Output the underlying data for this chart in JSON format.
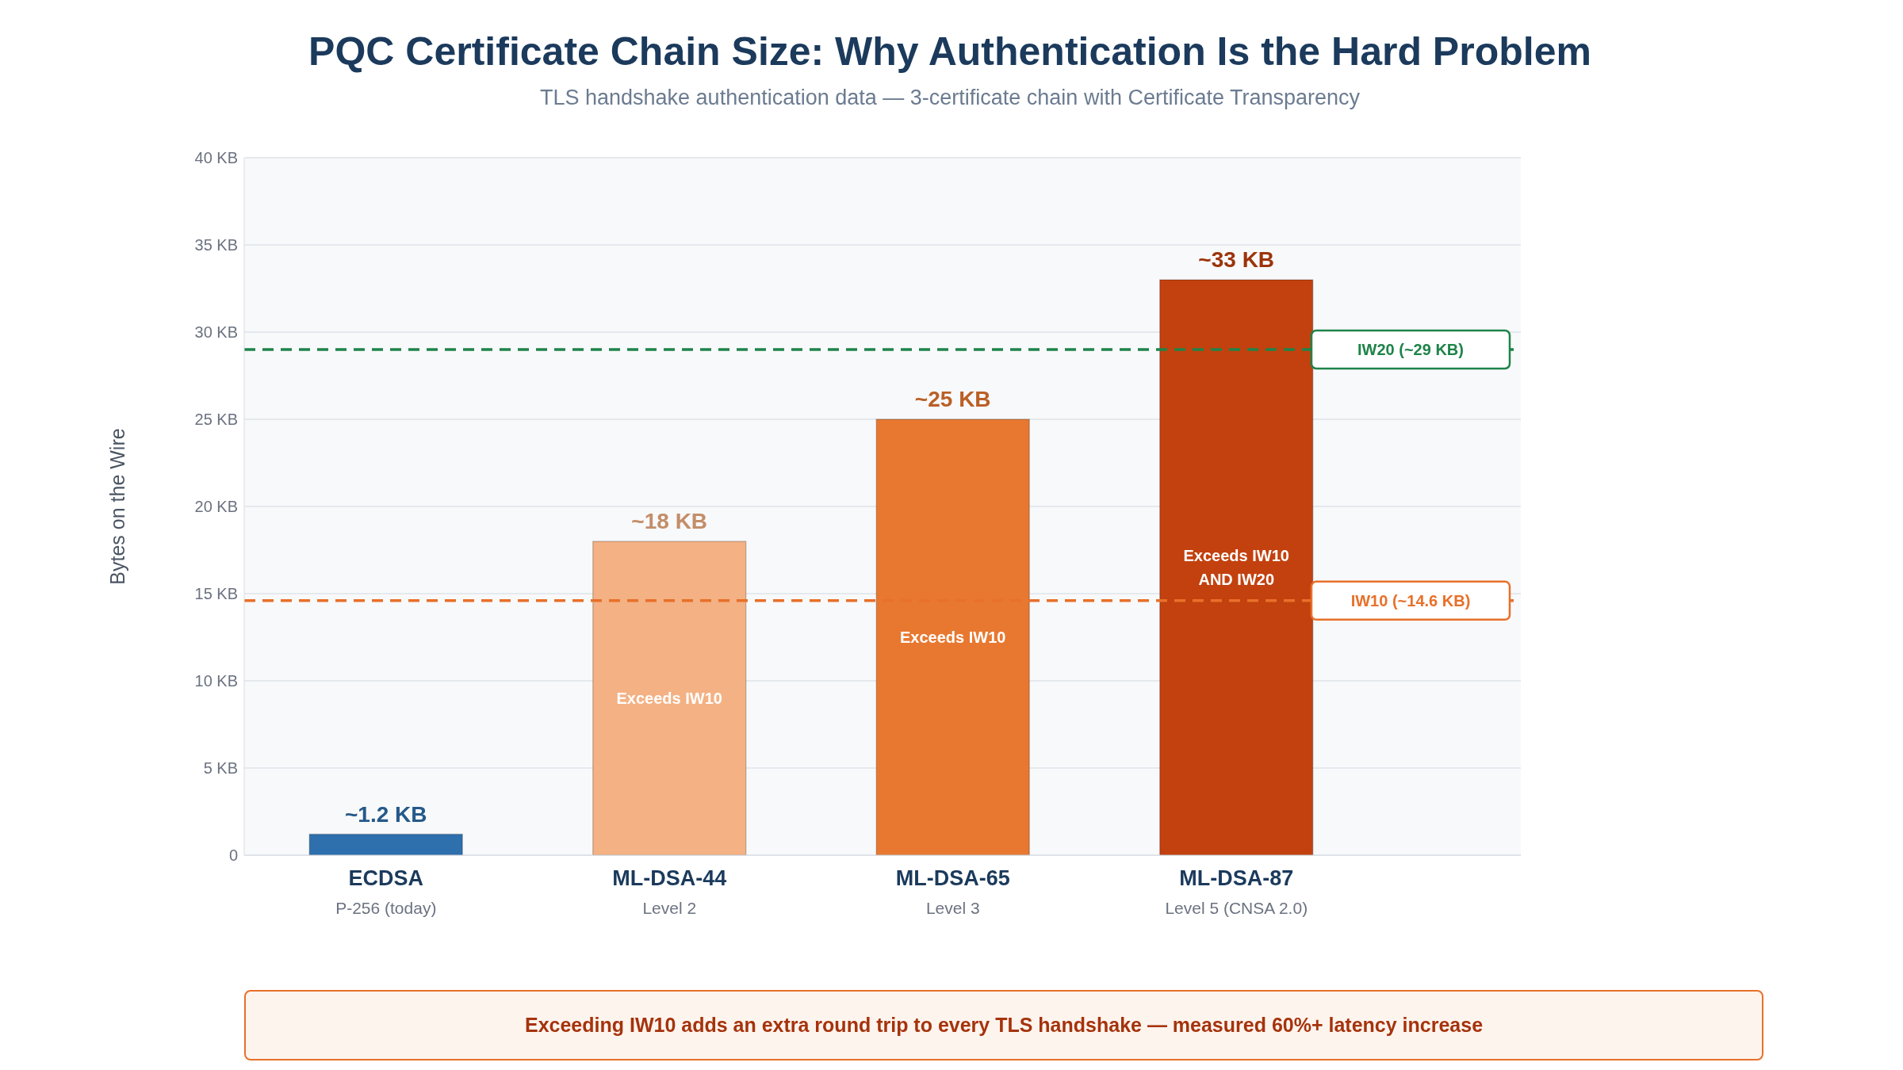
{
  "chart_data": {
    "type": "bar",
    "title": "PQC Certificate Chain Size: Why Authentication Is the Hard Problem",
    "subtitle": "TLS handshake authentication data — 3-certificate chain with Certificate Transparency",
    "ylabel": "Bytes on the Wire",
    "categories": [
      "ECDSA\nP-256 (today)",
      "ML-DSA-44\nLevel 2",
      "ML-DSA-65\nLevel 3",
      "ML-DSA-87\nLevel 5 (CNSA 2.0)"
    ],
    "values": [
      1.2,
      18,
      25,
      33
    ],
    "colors": [
      "#2e6fad",
      "#f4b183",
      "#e87830",
      "#c3410e"
    ],
    "value_labels": [
      "~1.2 KB",
      "~18 KB",
      "~25 KB",
      "~33 KB"
    ],
    "ylim": [
      0,
      40
    ],
    "yticks": [
      0,
      {
        "value": 5,
        "label": "5 KB"
      },
      {
        "value": 10,
        "label": "10 KB"
      },
      {
        "value": 15,
        "label": "15 KB"
      },
      {
        "value": 20,
        "label": "20 KB"
      },
      {
        "value": 25,
        "label": "25 KB"
      },
      {
        "value": 30,
        "label": "30 KB"
      },
      {
        "value": 35,
        "label": "35 KB"
      },
      {
        "value": 40,
        "label": "40 KB"
      }
    ],
    "grid": "y",
    "ref_lines": [
      {
        "axis": "y",
        "value": 29,
        "label": "IW20 (~29 KB)",
        "color": "#1e8449",
        "line_style": "dashed"
      },
      {
        "axis": "y",
        "value": 14.6,
        "label": "IW10 (~14.6 KB)",
        "color": "#e8702a",
        "line_style": "dashed"
      }
    ],
    "annotations": [
      "Exceeds IW10",
      "Exceeds IW10",
      "Exceeds IW10\nAND IW20",
      "Exceeding IW10 adds an extra round trip to every TLS handshake — measured 60%+ latency increase"
    ]
  }
}
